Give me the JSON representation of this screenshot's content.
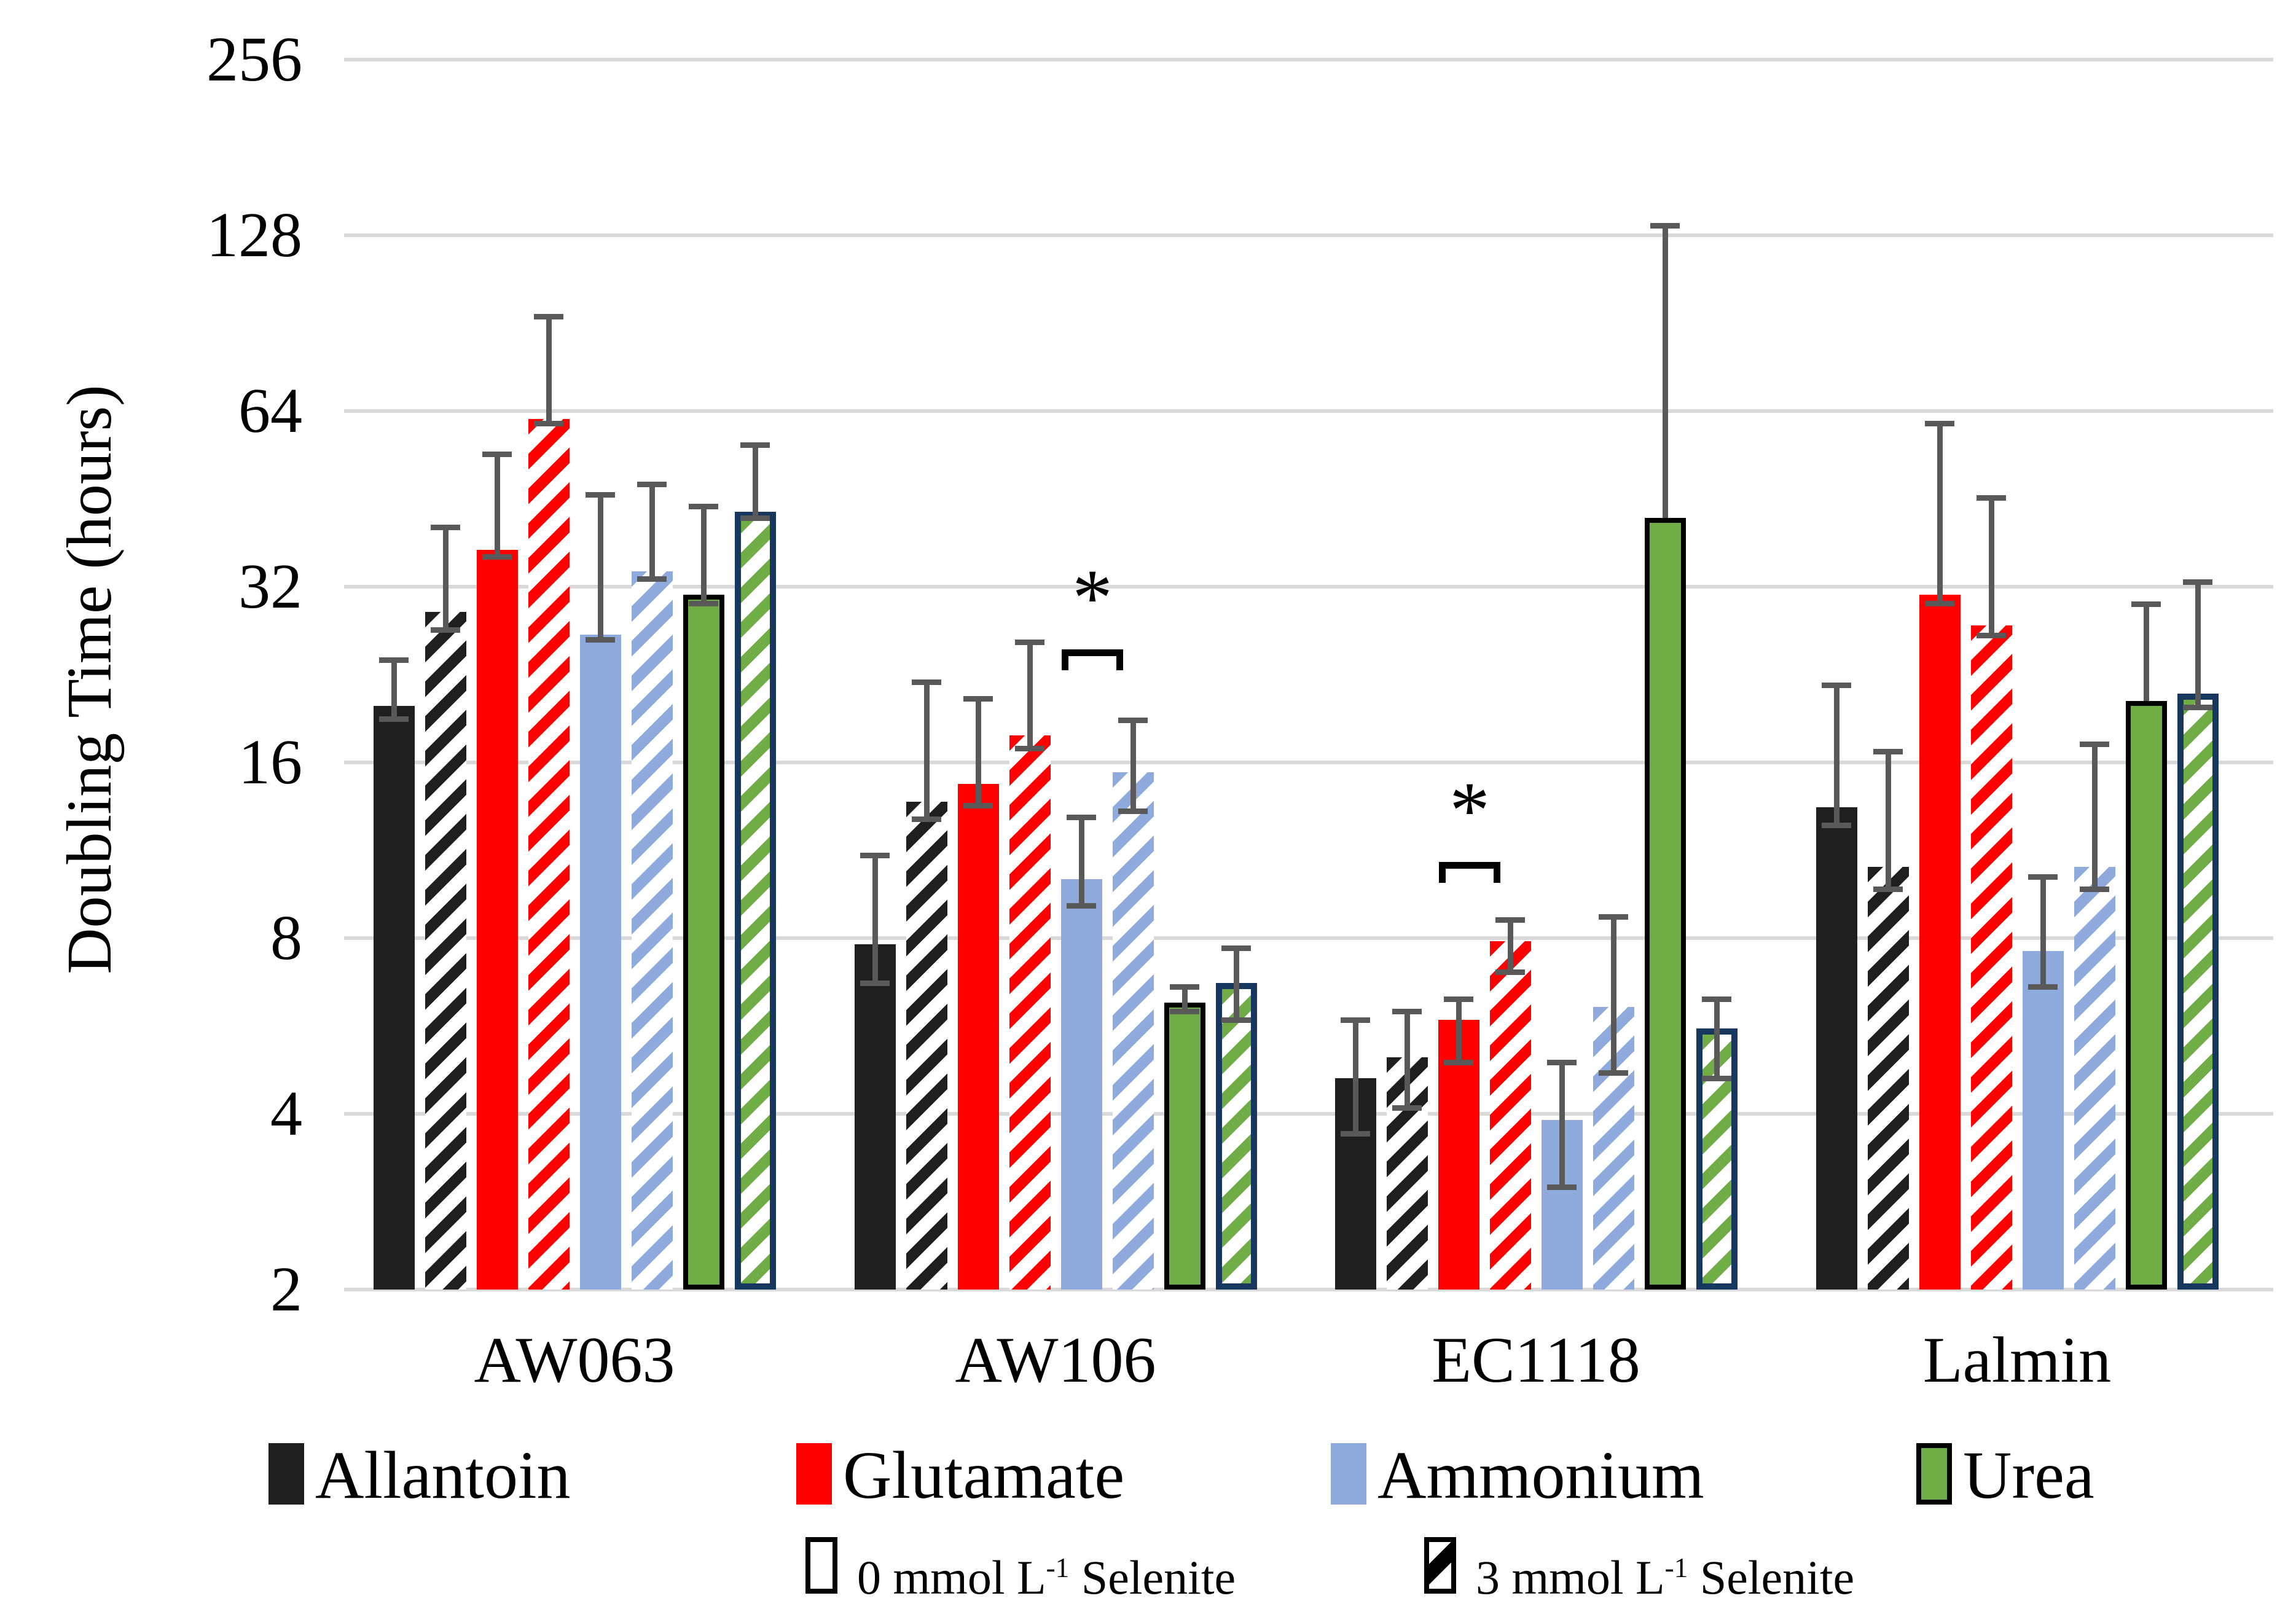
{
  "chart_data": {
    "type": "bar",
    "title": "",
    "xlabel": "",
    "ylabel": "Doubling Time (hours)",
    "y_scale": "log2",
    "ylim": [
      2,
      256
    ],
    "y_ticks": [
      256,
      128,
      64,
      32,
      16,
      8,
      4,
      2
    ],
    "grid": "horizontal",
    "categories": [
      "AW063",
      "AW106",
      "EC1118",
      "Lalmin"
    ],
    "series": [
      {
        "name": "Allantoin",
        "selenite": "0 mmol",
        "color": "#1F1F1F",
        "hatch": false,
        "border": null,
        "values": [
          20.0,
          7.8,
          4.6,
          13.4
        ],
        "err_top": [
          24,
          11.1,
          5.8,
          21.7
        ],
        "err_bot": [
          19,
          6.7,
          3.7,
          12.5
        ]
      },
      {
        "name": "Allantoin",
        "selenite": "3 mmol",
        "color": "#1F1F1F",
        "hatch": true,
        "border": null,
        "values": [
          29.0,
          13.7,
          5.0,
          10.6
        ],
        "err_top": [
          40.5,
          22,
          6.0,
          16.7
        ],
        "err_bot": [
          27,
          12.8,
          4.1,
          9.7
        ]
      },
      {
        "name": "Glutamate",
        "selenite": "0 mmol",
        "color": "#FF0000",
        "hatch": false,
        "border": null,
        "values": [
          37.0,
          14.7,
          5.8,
          31.0
        ],
        "err_top": [
          54,
          20.6,
          6.3,
          61
        ],
        "err_bot": [
          36,
          13.5,
          4.9,
          30
        ]
      },
      {
        "name": "Glutamate",
        "selenite": "3 mmol",
        "color": "#FF0000",
        "hatch": true,
        "border": null,
        "values": [
          62.0,
          17.8,
          7.9,
          27.5
        ],
        "err_top": [
          93,
          25.7,
          8.6,
          45.5
        ],
        "err_bot": [
          61,
          16.9,
          7.0,
          26.4
        ]
      },
      {
        "name": "Ammonium",
        "selenite": "0 mmol",
        "color": "#8FAADC",
        "hatch": false,
        "border": null,
        "values": [
          26.5,
          10.1,
          3.9,
          7.6
        ],
        "err_top": [
          46,
          12.9,
          4.9,
          10.2
        ],
        "err_bot": [
          26,
          9.1,
          3.0,
          6.6
        ]
      },
      {
        "name": "Ammonium",
        "selenite": "3 mmol",
        "color": "#8FAADC",
        "hatch": true,
        "border": null,
        "values": [
          34.0,
          15.4,
          6.1,
          10.6
        ],
        "err_top": [
          48,
          18.9,
          8.7,
          17.2
        ],
        "err_bot": [
          33,
          13.2,
          4.7,
          9.7
        ]
      },
      {
        "name": "Urea",
        "selenite": "0 mmol",
        "color": "#70AD47",
        "hatch": false,
        "border": "#000000",
        "values": [
          31.0,
          6.2,
          42.0,
          20.4
        ],
        "err_top": [
          44,
          6.6,
          133,
          29.9
        ],
        "err_bot": [
          30,
          6.0,
          null,
          null
        ]
      },
      {
        "name": "Urea",
        "selenite": "3 mmol",
        "color": "#70AD47",
        "hatch": true,
        "border": "#17375E",
        "values": [
          43.0,
          6.7,
          5.6,
          21.0
        ],
        "err_top": [
          56,
          7.7,
          6.3,
          32.6
        ],
        "err_bot": [
          42,
          5.8,
          4.6,
          19.9
        ]
      }
    ],
    "significance": [
      {
        "group": "AW106",
        "series_a": 4,
        "series_b": 5,
        "label": "*",
        "y": 25.0
      },
      {
        "group": "EC1118",
        "series_a": 2,
        "series_b": 3,
        "label": "*",
        "y": 10.8
      }
    ],
    "colors": {
      "allantoin": "#1F1F1F",
      "glutamate": "#FF0000",
      "ammonium": "#8FAADC",
      "urea": "#70AD47",
      "urea_solid_border": "#000000",
      "urea_hatch_border": "#17375E",
      "error_bar": "#595959",
      "gridline": "#D9D9D9"
    },
    "legend_position": "bottom"
  },
  "legend_nitrogen": [
    {
      "label": "Allantoin",
      "color": "#1F1F1F",
      "border": null
    },
    {
      "label": "Glutamate",
      "color": "#FF0000",
      "border": null
    },
    {
      "label": "Ammonium",
      "color": "#8FAADC",
      "border": null
    },
    {
      "label": "Urea",
      "color": "#70AD47",
      "border": "#000000"
    }
  ],
  "legend_selenite": [
    {
      "prefix": "0 mmol L",
      "sup": "-1",
      "suffix": " Selenite",
      "style": "open"
    },
    {
      "prefix": "3 mmol L",
      "sup": "-1",
      "suffix": "  Selenite",
      "style": "hatched"
    }
  ]
}
